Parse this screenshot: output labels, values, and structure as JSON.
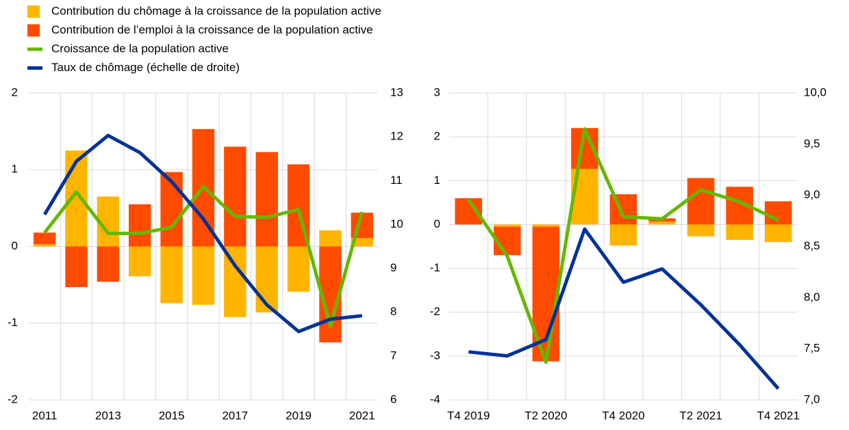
{
  "chart_data": [
    {
      "type": "bar",
      "grid": true,
      "categories": [
        "2011",
        null,
        "2013",
        null,
        "2015",
        null,
        "2017",
        null,
        "2019",
        null,
        "2021"
      ],
      "ylim": [
        -2,
        2
      ],
      "yticks": [
        -2,
        -1,
        0,
        1,
        2
      ],
      "y2lim": [
        6,
        13
      ],
      "y2ticks": [
        6,
        7,
        8,
        9,
        10,
        11,
        12,
        13
      ],
      "series": [
        {
          "name": "Contribution du chômage  à la croissance de la population  active",
          "type": "bar",
          "color": "#ffb400",
          "values": [
            0.03,
            1.25,
            0.65,
            -0.39,
            -0.74,
            -0.76,
            -0.92,
            -0.86,
            -0.59,
            0.21,
            0.11
          ]
        },
        {
          "name": "Contribution de l’emploi à la croissance de la population  active",
          "type": "bar",
          "color": "#ff4b00",
          "values": [
            0.15,
            -0.53,
            -0.46,
            0.55,
            0.97,
            1.53,
            1.3,
            1.23,
            1.07,
            -1.25,
            0.33
          ]
        },
        {
          "name": "Croissance de la population  active",
          "type": "line",
          "color": "#65b800",
          "values": [
            0.18,
            0.71,
            0.17,
            0.17,
            0.25,
            0.78,
            0.39,
            0.38,
            0.48,
            -1.04,
            0.45
          ]
        },
        {
          "name": "Taux de chômage  (échelle de droite)",
          "type": "line",
          "axis": "y2",
          "color": "#003299",
          "values": [
            10.23,
            11.44,
            12.03,
            11.64,
            10.98,
            10.13,
            9.06,
            8.17,
            7.56,
            7.84,
            7.92
          ]
        }
      ]
    },
    {
      "type": "bar",
      "grid": true,
      "categories": [
        "T4 2019",
        null,
        "T2 2020",
        null,
        "T4 2020",
        null,
        "T2 2021",
        null,
        "T4 2021"
      ],
      "ylim": [
        -4,
        3
      ],
      "yticks": [
        -4,
        -3,
        -2,
        -1,
        0,
        1,
        2,
        3
      ],
      "y2lim": [
        7,
        10
      ],
      "y2ticks": [
        {
          "value": 7,
          "label": "7,0"
        },
        {
          "value": 7.5,
          "label": "7,5"
        },
        {
          "value": 8,
          "label": "8,0"
        },
        {
          "value": 8.5,
          "label": "8,5"
        },
        {
          "value": 9,
          "label": "9,0"
        },
        {
          "value": 9.5,
          "label": "9,5"
        },
        {
          "value": 10,
          "label": "10,0"
        }
      ],
      "series": [
        {
          "type": "bar",
          "color": "#ffb400",
          "values": [
            0.0,
            -0.05,
            -0.05,
            1.27,
            -0.48,
            0.07,
            -0.27,
            -0.35,
            -0.4
          ]
        },
        {
          "type": "bar",
          "color": "#ff4b00",
          "values": [
            0.6,
            -0.65,
            -3.07,
            0.93,
            0.69,
            0.07,
            1.06,
            0.86,
            0.53
          ]
        },
        {
          "type": "line",
          "color": "#65b800",
          "values": [
            0.57,
            -0.72,
            -3.14,
            2.18,
            0.18,
            0.13,
            0.79,
            0.52,
            0.1
          ]
        },
        {
          "type": "line",
          "axis": "y2",
          "color": "#003299",
          "values": [
            7.47,
            7.43,
            7.59,
            8.67,
            8.15,
            8.28,
            7.93,
            7.54,
            7.11
          ]
        }
      ]
    }
  ]
}
